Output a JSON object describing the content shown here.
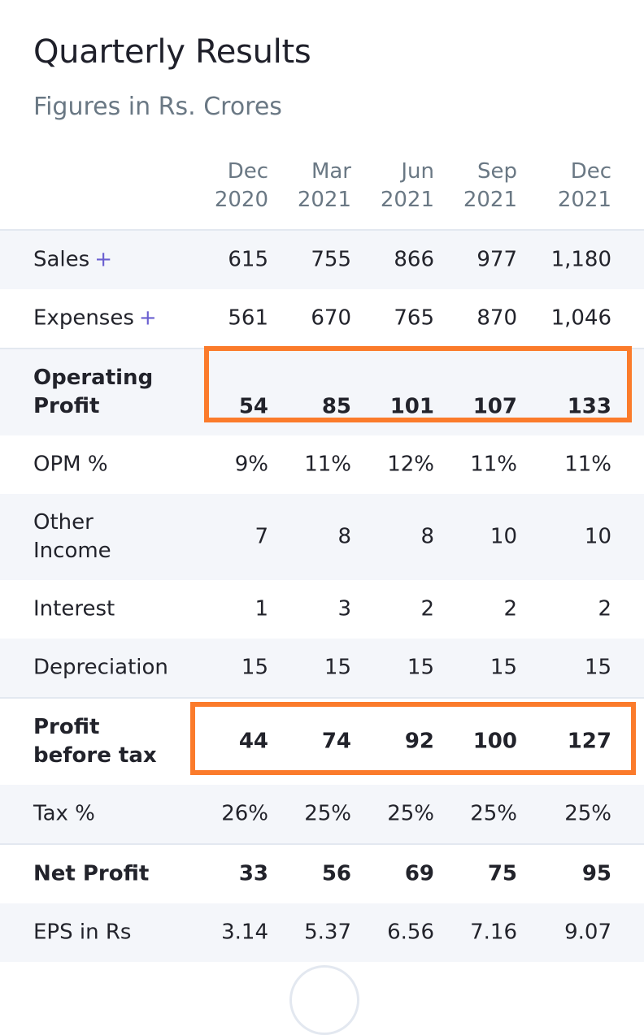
{
  "title": "Quarterly Results",
  "subtitle": "Figures in Rs. Crores",
  "columns": [
    {
      "month": "Dec",
      "year": "2020"
    },
    {
      "month": "Mar",
      "year": "2021"
    },
    {
      "month": "Jun",
      "year": "2021"
    },
    {
      "month": "Sep",
      "year": "2021"
    },
    {
      "month": "Dec",
      "year": "2021"
    }
  ],
  "rows": [
    {
      "label": "Sales",
      "expand": "+",
      "values": [
        "615",
        "755",
        "866",
        "977",
        "1,180"
      ]
    },
    {
      "label": "Expenses",
      "expand": "+",
      "values": [
        "561",
        "670",
        "765",
        "870",
        "1,046"
      ]
    },
    {
      "label_line1": "Operating",
      "label_line2": "Profit",
      "values": [
        "54",
        "85",
        "101",
        "107",
        "133"
      ]
    },
    {
      "label": "OPM %",
      "values": [
        "9%",
        "11%",
        "12%",
        "11%",
        "11%"
      ]
    },
    {
      "label_line1": "Other",
      "label_line2": "Income",
      "values": [
        "7",
        "8",
        "8",
        "10",
        "10"
      ]
    },
    {
      "label": "Interest",
      "values": [
        "1",
        "3",
        "2",
        "2",
        "2"
      ]
    },
    {
      "label": "Depreciation",
      "values": [
        "15",
        "15",
        "15",
        "15",
        "15"
      ]
    },
    {
      "label_line1": "Profit",
      "label_line2": "before tax",
      "values": [
        "44",
        "74",
        "92",
        "100",
        "127"
      ]
    },
    {
      "label": "Tax %",
      "values": [
        "26%",
        "25%",
        "25%",
        "25%",
        "25%"
      ]
    },
    {
      "label": "Net Profit",
      "values": [
        "33",
        "56",
        "69",
        "75",
        "95"
      ]
    },
    {
      "label": "EPS in Rs",
      "values": [
        "3.14",
        "5.37",
        "6.56",
        "7.16",
        "9.07"
      ]
    }
  ],
  "colors": {
    "highlight": "#fb7b2b",
    "accent_plus": "#6a5fd0",
    "row_alt": "#f4f6fa",
    "muted_text": "#6a7884"
  }
}
